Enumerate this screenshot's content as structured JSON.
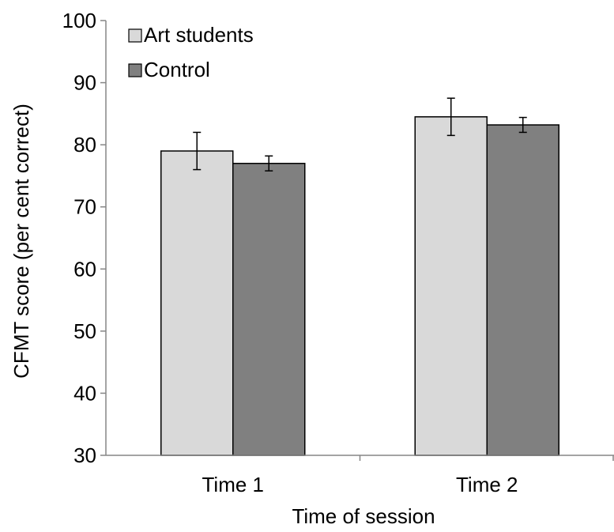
{
  "chart_data": {
    "type": "bar",
    "title": "",
    "xlabel": "Time of session",
    "ylabel": "CFMT score (per cent correct)",
    "categories": [
      "Time 1",
      "Time 2"
    ],
    "ylim": [
      30,
      100
    ],
    "yticks": [
      30,
      40,
      50,
      60,
      70,
      80,
      90,
      100
    ],
    "grid": false,
    "legend_position": "top-left",
    "series": [
      {
        "name": "Art students",
        "values": [
          79.0,
          84.5
        ],
        "errors": [
          3.0,
          3.0
        ],
        "color": "#d9d9d9"
      },
      {
        "name": "Control",
        "values": [
          77.0,
          83.2
        ],
        "errors": [
          1.2,
          1.2
        ],
        "color": "#808080"
      }
    ]
  }
}
